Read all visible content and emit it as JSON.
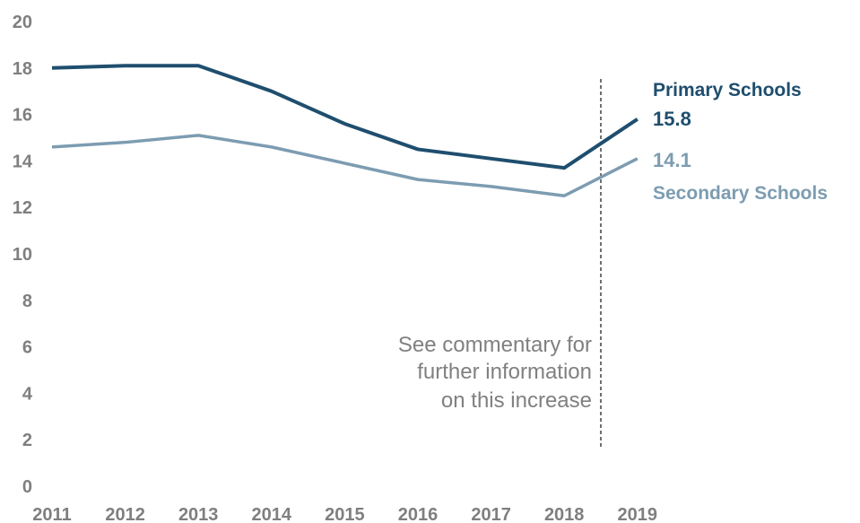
{
  "chart_data": {
    "type": "line",
    "x": [
      "2011",
      "2012",
      "2013",
      "2014",
      "2015",
      "2016",
      "2017",
      "2018",
      "2019"
    ],
    "ylim": [
      0,
      20
    ],
    "yticks": [
      "0",
      "2",
      "4",
      "6",
      "8",
      "10",
      "12",
      "14",
      "16",
      "18",
      "20"
    ],
    "grid": false,
    "series": [
      {
        "name": "Primary Schools",
        "values": [
          18.0,
          18.1,
          18.1,
          17.0,
          15.6,
          14.5,
          14.1,
          13.7,
          15.8
        ],
        "end_label": "15.8",
        "color": "#1f4e6e"
      },
      {
        "name": "Secondary Schools",
        "values": [
          14.6,
          14.8,
          15.1,
          14.6,
          13.9,
          13.2,
          12.9,
          12.5,
          14.1
        ],
        "end_label": "14.1",
        "color": "#7c9cb1"
      }
    ],
    "annotation": {
      "lines": [
        "See commentary for",
        "further information",
        "on this increase"
      ],
      "color": "#808080"
    },
    "axis_color": "#7f7f7f"
  }
}
